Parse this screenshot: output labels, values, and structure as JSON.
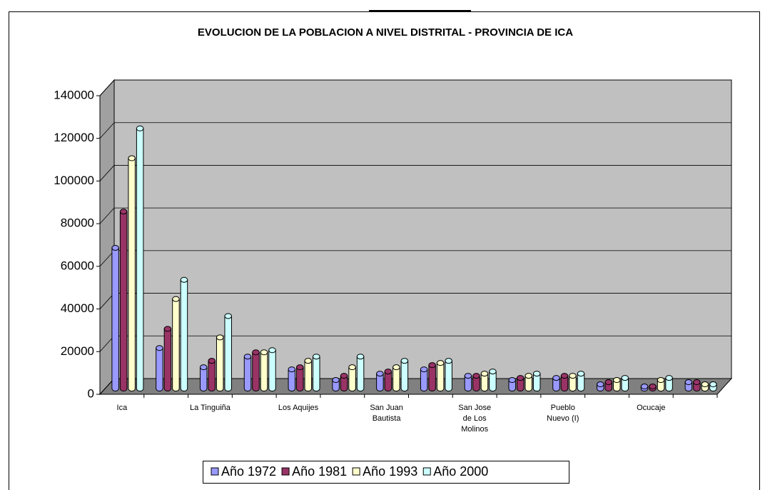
{
  "chart_data": {
    "type": "bar3d",
    "title": "EVOLUCION DE LA POBLACION A NIVEL DISTRITAL - PROVINCIA DE ICA",
    "categories": [
      "Ica",
      null,
      "La Tinguiña",
      null,
      "Los Aquijes",
      null,
      "San Juan Bautista",
      null,
      "San Jose de Los Molinos",
      null,
      "Pueblo Nuevo (I)",
      null,
      "Ocucaje",
      null
    ],
    "series": [
      {
        "name": "Año 1972",
        "color": "#9999ff",
        "values": [
          66000,
          19000,
          10000,
          15000,
          9000,
          4000,
          7000,
          9000,
          6000,
          4000,
          5000,
          2000,
          1000,
          3000
        ]
      },
      {
        "name": "Año 1981",
        "color": "#993366",
        "values": [
          83000,
          28000,
          13000,
          17000,
          10000,
          6000,
          8000,
          11000,
          6000,
          5000,
          6000,
          3000,
          1000,
          3000
        ]
      },
      {
        "name": "Año 1993",
        "color": "#ffffcc",
        "values": [
          108000,
          42000,
          24000,
          17000,
          13000,
          10000,
          10000,
          12000,
          7000,
          6000,
          6000,
          4000,
          4000,
          2000
        ]
      },
      {
        "name": "Año 2000",
        "color": "#ccffff",
        "values": [
          122000,
          51000,
          34000,
          18000,
          15000,
          15000,
          13000,
          13000,
          8000,
          7000,
          7000,
          5000,
          5000,
          2000
        ]
      }
    ],
    "ylim": [
      0,
      140000
    ],
    "yticks": [
      0,
      20000,
      40000,
      60000,
      80000,
      100000,
      120000,
      140000
    ],
    "grid": true,
    "legend": "bottom"
  }
}
